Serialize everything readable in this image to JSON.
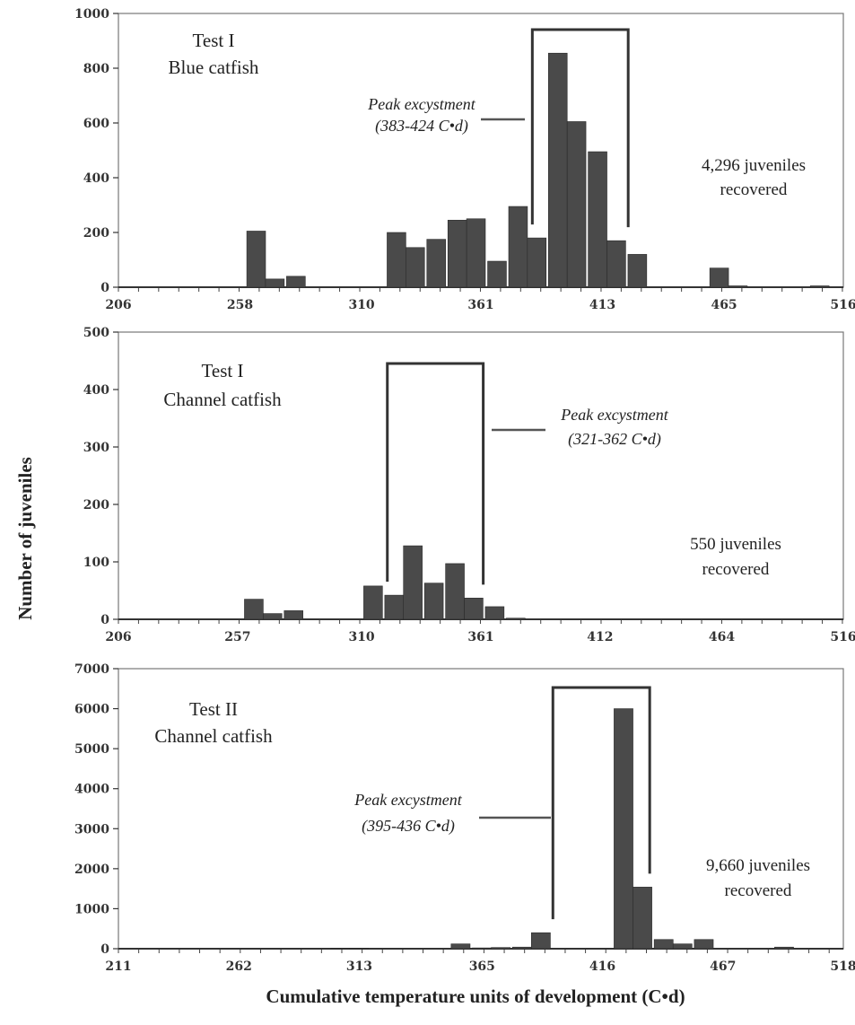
{
  "figure": {
    "ylabel": "Number of juveniles",
    "xlabel": "Cumulative temperature units of development (C•d)"
  },
  "chart_data": [
    {
      "type": "bar",
      "panel_title": [
        "Test I",
        "Blue catfish"
      ],
      "ylim": [
        0,
        1000
      ],
      "yticks": [
        0,
        200,
        400,
        600,
        800,
        1000
      ],
      "xlim": [
        206,
        516
      ],
      "xticks": [
        206,
        258,
        310,
        361,
        413,
        465,
        516
      ],
      "x": [
        265,
        273,
        282,
        316,
        325,
        333,
        342,
        351,
        359,
        368,
        377,
        385,
        394,
        402,
        411,
        419,
        428,
        437,
        445,
        454,
        463,
        471,
        480,
        489,
        497,
        506
      ],
      "values": [
        205,
        30,
        40,
        0,
        200,
        145,
        175,
        245,
        250,
        95,
        295,
        180,
        855,
        605,
        495,
        170,
        120,
        0,
        0,
        0,
        70,
        5,
        0,
        0,
        0,
        5
      ],
      "annotation": [
        "Peak excystment",
        "(383-424 C•d)"
      ],
      "bracket": [
        383,
        424
      ],
      "note": [
        "4,296 juveniles",
        "recovered"
      ]
    },
    {
      "type": "bar",
      "panel_title": [
        "Test I",
        "Channel catfish"
      ],
      "ylim": [
        0,
        500
      ],
      "yticks": [
        0,
        100,
        200,
        300,
        400,
        500
      ],
      "xlim": [
        206,
        516
      ],
      "xticks": [
        206,
        257,
        310,
        361,
        412,
        464,
        516
      ],
      "x": [
        264,
        272,
        281,
        315,
        324,
        332,
        341,
        350,
        358,
        367,
        376,
        384
      ],
      "values": [
        35,
        10,
        15,
        58,
        42,
        128,
        63,
        97,
        37,
        22,
        2,
        0
      ],
      "annotation": [
        "Peak excystment",
        "(321-362 C•d)"
      ],
      "bracket": [
        321,
        362
      ],
      "note": [
        "550 juveniles",
        "recovered"
      ]
    },
    {
      "type": "bar",
      "panel_title": [
        "Test II",
        "Channel catfish"
      ],
      "ylim": [
        0,
        7000
      ],
      "yticks": [
        0,
        1000,
        2000,
        3000,
        4000,
        5000,
        6000,
        7000
      ],
      "xlim": [
        211,
        518
      ],
      "xticks": [
        211,
        262,
        313,
        365,
        416,
        467,
        518
      ],
      "x": [
        270,
        279,
        288,
        296,
        305,
        313,
        322,
        330,
        339,
        348,
        356,
        365,
        373,
        382,
        390,
        399,
        408,
        416,
        425,
        433,
        442,
        450,
        459,
        467,
        476,
        484,
        493,
        501
      ],
      "values": [
        0,
        0,
        0,
        0,
        10,
        10,
        0,
        0,
        0,
        0,
        120,
        20,
        30,
        40,
        400,
        0,
        0,
        0,
        6000,
        1540,
        230,
        120,
        230,
        0,
        0,
        0,
        40,
        0
      ],
      "annotation": [
        "Peak excystment",
        "(395-436 C•d)"
      ],
      "bracket": [
        395,
        436
      ],
      "note": [
        "9,660 juveniles",
        "recovered"
      ]
    }
  ]
}
